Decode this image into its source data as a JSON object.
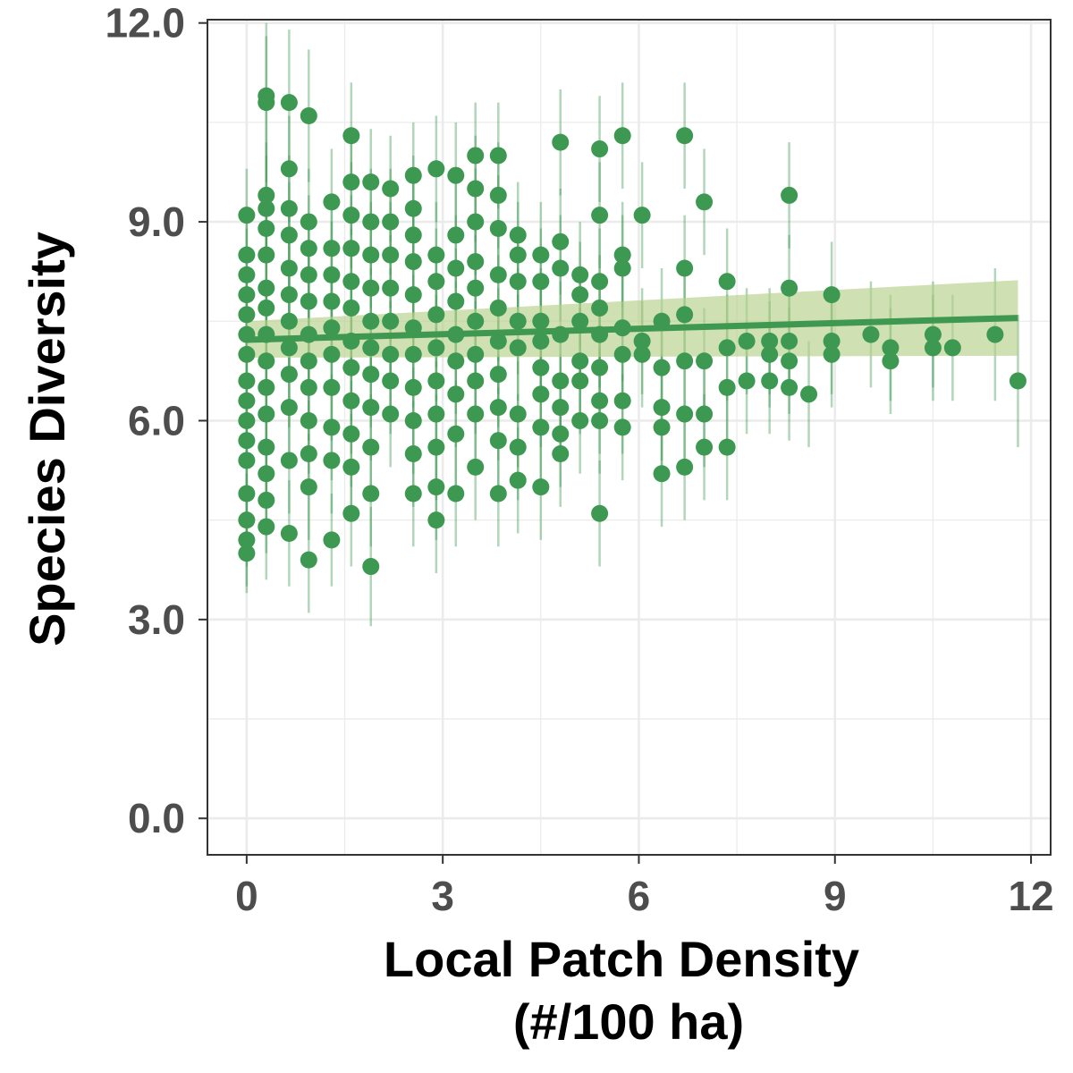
{
  "chart_data": {
    "type": "scatter",
    "xlabel_lines": [
      "Local Patch Density",
      "(#/100 ha)"
    ],
    "ylabel": "Species Diversity",
    "xlim": [
      -0.6,
      12.3
    ],
    "ylim": [
      -0.55,
      12.05
    ],
    "x_ticks": [
      0,
      3,
      6,
      9,
      12
    ],
    "x_tick_labels": [
      "0",
      "3",
      "6",
      "9",
      "12"
    ],
    "y_ticks": [
      0,
      3,
      6,
      9,
      12
    ],
    "y_tick_labels": [
      "0.0",
      "3.0",
      "6.0",
      "9.0",
      "12.0"
    ],
    "grid": true,
    "colors": {
      "points": "#3d9951",
      "error_bars": "#3d9951",
      "trend_line": "#3f9850",
      "confidence_band": "#b5d08b",
      "grid": "#ebebeb",
      "panel_border": "#333333"
    },
    "trend": {
      "x": [
        0,
        11.8
      ],
      "y": [
        7.22,
        7.55
      ],
      "ci_lower": [
        6.95,
        6.98
      ],
      "ci_upper": [
        7.5,
        8.12
      ]
    },
    "points": [
      [
        0,
        4.0,
        3.4,
        4.7
      ],
      [
        0,
        4.2,
        3.5,
        4.9
      ],
      [
        0,
        4.5,
        3.8,
        5.2
      ],
      [
        0,
        4.9,
        4.2,
        5.6
      ],
      [
        0,
        5.4,
        4.7,
        6.1
      ],
      [
        0,
        5.7,
        5.0,
        6.4
      ],
      [
        0,
        6.0,
        5.3,
        6.7
      ],
      [
        0,
        6.3,
        5.6,
        7.0
      ],
      [
        0,
        6.6,
        5.9,
        7.3
      ],
      [
        0,
        7.0,
        6.3,
        7.7
      ],
      [
        0,
        7.3,
        6.6,
        8.0
      ],
      [
        0,
        7.6,
        6.9,
        8.3
      ],
      [
        0,
        7.9,
        7.2,
        8.6
      ],
      [
        0,
        8.2,
        7.5,
        8.9
      ],
      [
        0,
        8.5,
        7.8,
        9.2
      ],
      [
        0,
        9.1,
        8.4,
        9.8
      ],
      [
        0.3,
        4.4,
        3.6,
        5.2
      ],
      [
        0.3,
        4.8,
        4.0,
        5.6
      ],
      [
        0.3,
        5.2,
        4.4,
        6.0
      ],
      [
        0.3,
        5.6,
        4.8,
        6.4
      ],
      [
        0.3,
        6.1,
        5.3,
        6.9
      ],
      [
        0.3,
        6.5,
        5.7,
        7.3
      ],
      [
        0.3,
        6.9,
        6.1,
        7.7
      ],
      [
        0.3,
        7.3,
        6.5,
        8.1
      ],
      [
        0.3,
        7.7,
        6.9,
        8.5
      ],
      [
        0.3,
        8.0,
        7.2,
        8.8
      ],
      [
        0.3,
        8.5,
        7.7,
        9.3
      ],
      [
        0.3,
        8.9,
        8.1,
        9.7
      ],
      [
        0.3,
        9.2,
        8.4,
        10.0
      ],
      [
        0.3,
        9.4,
        8.6,
        10.2
      ],
      [
        0.3,
        10.8,
        9.6,
        12.0
      ],
      [
        0.3,
        10.9,
        9.7,
        11.8
      ],
      [
        0.65,
        4.3,
        3.5,
        5.1
      ],
      [
        0.65,
        5.4,
        4.6,
        6.2
      ],
      [
        0.65,
        6.2,
        5.4,
        7.0
      ],
      [
        0.65,
        6.7,
        5.9,
        7.5
      ],
      [
        0.65,
        7.1,
        6.3,
        7.9
      ],
      [
        0.65,
        7.5,
        6.7,
        8.3
      ],
      [
        0.65,
        7.9,
        7.1,
        8.7
      ],
      [
        0.65,
        8.3,
        7.5,
        9.1
      ],
      [
        0.65,
        8.8,
        8.0,
        9.6
      ],
      [
        0.65,
        9.2,
        8.4,
        10.0
      ],
      [
        0.65,
        9.8,
        9.0,
        10.6
      ],
      [
        0.65,
        10.8,
        9.7,
        11.9
      ],
      [
        0.95,
        3.9,
        3.1,
        4.7
      ],
      [
        0.95,
        5.0,
        4.2,
        5.8
      ],
      [
        0.95,
        5.5,
        4.7,
        6.3
      ],
      [
        0.95,
        6.0,
        5.2,
        6.8
      ],
      [
        0.95,
        6.5,
        5.7,
        7.3
      ],
      [
        0.95,
        6.9,
        6.1,
        7.7
      ],
      [
        0.95,
        7.3,
        6.5,
        8.1
      ],
      [
        0.95,
        7.8,
        7.0,
        8.6
      ],
      [
        0.95,
        8.2,
        7.4,
        9.0
      ],
      [
        0.95,
        8.6,
        7.8,
        9.4
      ],
      [
        0.95,
        9.0,
        8.2,
        9.8
      ],
      [
        0.95,
        10.6,
        9.6,
        11.6
      ],
      [
        1.3,
        4.2,
        3.5,
        4.9
      ],
      [
        1.3,
        5.4,
        4.6,
        6.2
      ],
      [
        1.3,
        5.9,
        5.1,
        6.7
      ],
      [
        1.3,
        6.5,
        5.7,
        7.3
      ],
      [
        1.3,
        7.0,
        6.2,
        7.8
      ],
      [
        1.3,
        7.4,
        6.6,
        8.2
      ],
      [
        1.3,
        7.8,
        7.0,
        8.6
      ],
      [
        1.3,
        8.2,
        7.4,
        9.0
      ],
      [
        1.3,
        8.6,
        7.8,
        9.4
      ],
      [
        1.3,
        9.3,
        8.5,
        10.1
      ],
      [
        1.6,
        4.6,
        3.8,
        5.4
      ],
      [
        1.6,
        5.3,
        4.5,
        6.1
      ],
      [
        1.6,
        5.8,
        5.0,
        6.6
      ],
      [
        1.6,
        6.3,
        5.5,
        7.1
      ],
      [
        1.6,
        6.8,
        6.0,
        7.6
      ],
      [
        1.6,
        7.2,
        6.4,
        8.0
      ],
      [
        1.6,
        7.7,
        6.9,
        8.5
      ],
      [
        1.6,
        8.1,
        7.3,
        8.9
      ],
      [
        1.6,
        8.6,
        7.8,
        9.4
      ],
      [
        1.6,
        9.1,
        8.3,
        9.9
      ],
      [
        1.6,
        9.6,
        8.8,
        10.4
      ],
      [
        1.6,
        10.3,
        9.5,
        11.1
      ],
      [
        1.9,
        3.8,
        2.9,
        4.7
      ],
      [
        1.9,
        4.9,
        4.1,
        5.7
      ],
      [
        1.9,
        5.6,
        4.8,
        6.4
      ],
      [
        1.9,
        6.2,
        5.4,
        7.0
      ],
      [
        1.9,
        6.7,
        5.9,
        7.5
      ],
      [
        1.9,
        7.1,
        6.3,
        7.9
      ],
      [
        1.9,
        7.5,
        6.7,
        8.3
      ],
      [
        1.9,
        8.0,
        7.2,
        8.8
      ],
      [
        1.9,
        8.5,
        7.7,
        9.3
      ],
      [
        1.9,
        9.0,
        8.2,
        9.8
      ],
      [
        1.9,
        9.6,
        8.8,
        10.4
      ],
      [
        2.2,
        6.1,
        5.3,
        6.9
      ],
      [
        2.2,
        6.6,
        5.8,
        7.4
      ],
      [
        2.2,
        7.0,
        6.2,
        7.8
      ],
      [
        2.2,
        7.5,
        6.7,
        8.3
      ],
      [
        2.2,
        8.0,
        7.2,
        8.8
      ],
      [
        2.2,
        8.5,
        7.7,
        9.3
      ],
      [
        2.2,
        9.0,
        8.2,
        9.8
      ],
      [
        2.2,
        9.5,
        8.7,
        10.3
      ],
      [
        2.55,
        4.9,
        4.1,
        5.7
      ],
      [
        2.55,
        5.5,
        4.7,
        6.3
      ],
      [
        2.55,
        6.0,
        5.2,
        6.8
      ],
      [
        2.55,
        6.5,
        5.7,
        7.3
      ],
      [
        2.55,
        7.0,
        6.2,
        7.8
      ],
      [
        2.55,
        7.4,
        6.6,
        8.2
      ],
      [
        2.55,
        7.9,
        7.1,
        8.7
      ],
      [
        2.55,
        8.4,
        7.6,
        9.2
      ],
      [
        2.55,
        8.8,
        8.0,
        9.6
      ],
      [
        2.55,
        9.2,
        8.4,
        10.0
      ],
      [
        2.55,
        9.7,
        8.9,
        10.5
      ],
      [
        2.9,
        4.5,
        3.7,
        5.3
      ],
      [
        2.9,
        5.0,
        4.2,
        5.8
      ],
      [
        2.9,
        5.6,
        4.8,
        6.4
      ],
      [
        2.9,
        6.1,
        5.3,
        6.9
      ],
      [
        2.9,
        6.6,
        5.8,
        7.4
      ],
      [
        2.9,
        7.1,
        6.3,
        7.9
      ],
      [
        2.9,
        7.6,
        6.8,
        8.4
      ],
      [
        2.9,
        8.1,
        7.3,
        8.9
      ],
      [
        2.9,
        8.5,
        7.7,
        9.3
      ],
      [
        2.9,
        9.8,
        9.0,
        10.6
      ],
      [
        3.2,
        4.9,
        4.1,
        5.7
      ],
      [
        3.2,
        5.8,
        5.0,
        6.6
      ],
      [
        3.2,
        6.4,
        5.6,
        7.2
      ],
      [
        3.2,
        6.9,
        6.1,
        7.7
      ],
      [
        3.2,
        7.3,
        6.5,
        8.1
      ],
      [
        3.2,
        7.8,
        7.0,
        8.6
      ],
      [
        3.2,
        8.3,
        7.5,
        9.1
      ],
      [
        3.2,
        8.8,
        8.0,
        9.6
      ],
      [
        3.2,
        9.7,
        8.9,
        10.5
      ],
      [
        3.5,
        5.3,
        4.5,
        6.1
      ],
      [
        3.5,
        6.1,
        5.3,
        6.9
      ],
      [
        3.5,
        6.6,
        5.8,
        7.4
      ],
      [
        3.5,
        7.0,
        6.2,
        7.8
      ],
      [
        3.5,
        7.5,
        6.7,
        8.3
      ],
      [
        3.5,
        8.0,
        7.2,
        8.8
      ],
      [
        3.5,
        8.4,
        7.6,
        9.2
      ],
      [
        3.5,
        9.0,
        8.2,
        9.8
      ],
      [
        3.5,
        9.5,
        8.7,
        10.3
      ],
      [
        3.5,
        10.0,
        9.2,
        10.8
      ],
      [
        3.85,
        4.9,
        4.1,
        5.7
      ],
      [
        3.85,
        5.7,
        4.9,
        6.5
      ],
      [
        3.85,
        6.2,
        5.4,
        7.0
      ],
      [
        3.85,
        6.7,
        5.9,
        7.5
      ],
      [
        3.85,
        7.2,
        6.4,
        8.0
      ],
      [
        3.85,
        7.7,
        6.9,
        8.5
      ],
      [
        3.85,
        8.2,
        7.4,
        9.0
      ],
      [
        3.85,
        8.9,
        8.1,
        9.7
      ],
      [
        3.85,
        9.4,
        8.6,
        10.2
      ],
      [
        3.85,
        10.0,
        9.2,
        10.8
      ],
      [
        4.15,
        5.1,
        4.3,
        5.9
      ],
      [
        4.15,
        5.6,
        4.8,
        6.4
      ],
      [
        4.15,
        6.1,
        5.3,
        6.9
      ],
      [
        4.15,
        7.1,
        6.3,
        7.9
      ],
      [
        4.15,
        7.5,
        6.7,
        8.3
      ],
      [
        4.15,
        8.1,
        7.3,
        8.9
      ],
      [
        4.15,
        8.5,
        7.7,
        9.3
      ],
      [
        4.15,
        8.8,
        8.0,
        9.6
      ],
      [
        4.5,
        5.0,
        4.2,
        5.8
      ],
      [
        4.5,
        5.9,
        5.1,
        6.7
      ],
      [
        4.5,
        6.4,
        5.6,
        7.2
      ],
      [
        4.5,
        6.8,
        6.0,
        7.6
      ],
      [
        4.5,
        7.2,
        6.4,
        8.0
      ],
      [
        4.5,
        7.5,
        6.7,
        8.3
      ],
      [
        4.5,
        8.1,
        7.3,
        8.9
      ],
      [
        4.5,
        8.5,
        7.7,
        9.3
      ],
      [
        4.8,
        5.5,
        4.7,
        6.3
      ],
      [
        4.8,
        5.8,
        5.0,
        6.6
      ],
      [
        4.8,
        6.2,
        5.4,
        7.0
      ],
      [
        4.8,
        6.6,
        5.8,
        7.4
      ],
      [
        4.8,
        7.3,
        6.5,
        8.1
      ],
      [
        4.8,
        8.3,
        7.5,
        9.1
      ],
      [
        4.8,
        8.7,
        7.9,
        9.5
      ],
      [
        4.8,
        10.2,
        9.4,
        11.0
      ],
      [
        5.1,
        6.0,
        5.2,
        6.8
      ],
      [
        5.1,
        6.6,
        5.8,
        7.4
      ],
      [
        5.1,
        6.9,
        6.1,
        7.7
      ],
      [
        5.1,
        7.5,
        6.7,
        8.3
      ],
      [
        5.1,
        7.9,
        7.1,
        8.7
      ],
      [
        5.1,
        8.2,
        7.4,
        9.0
      ],
      [
        5.4,
        4.6,
        3.8,
        5.4
      ],
      [
        5.4,
        6.0,
        5.2,
        6.8
      ],
      [
        5.4,
        6.3,
        5.5,
        7.1
      ],
      [
        5.4,
        6.8,
        6.0,
        7.6
      ],
      [
        5.4,
        7.3,
        6.5,
        8.1
      ],
      [
        5.4,
        7.7,
        6.9,
        8.5
      ],
      [
        5.4,
        8.1,
        7.3,
        8.9
      ],
      [
        5.4,
        9.1,
        8.3,
        9.9
      ],
      [
        5.4,
        10.1,
        9.3,
        10.9
      ],
      [
        5.75,
        5.9,
        5.1,
        6.7
      ],
      [
        5.75,
        6.3,
        5.5,
        7.1
      ],
      [
        5.75,
        7.0,
        6.2,
        7.8
      ],
      [
        5.75,
        7.4,
        6.6,
        8.2
      ],
      [
        5.75,
        8.3,
        7.5,
        9.1
      ],
      [
        5.75,
        8.5,
        7.7,
        9.3
      ],
      [
        5.75,
        10.3,
        9.5,
        11.1
      ],
      [
        6.05,
        7.0,
        6.2,
        7.8
      ],
      [
        6.05,
        7.2,
        6.4,
        8.0
      ],
      [
        6.05,
        9.1,
        8.3,
        9.9
      ],
      [
        6.35,
        5.2,
        4.4,
        6.0
      ],
      [
        6.35,
        5.9,
        5.1,
        6.7
      ],
      [
        6.35,
        6.2,
        5.4,
        7.0
      ],
      [
        6.35,
        6.8,
        6.0,
        7.6
      ],
      [
        6.35,
        7.5,
        6.7,
        8.3
      ],
      [
        6.7,
        5.3,
        4.5,
        6.1
      ],
      [
        6.7,
        6.1,
        5.3,
        6.9
      ],
      [
        6.7,
        6.9,
        6.1,
        7.7
      ],
      [
        6.7,
        7.6,
        6.8,
        8.4
      ],
      [
        6.7,
        8.3,
        7.5,
        9.1
      ],
      [
        6.7,
        10.3,
        9.5,
        11.1
      ],
      [
        7.0,
        5.6,
        4.8,
        6.4
      ],
      [
        7.0,
        6.1,
        5.3,
        6.9
      ],
      [
        7.0,
        6.9,
        6.1,
        7.7
      ],
      [
        7.0,
        9.3,
        8.5,
        10.1
      ],
      [
        7.35,
        5.6,
        4.8,
        6.4
      ],
      [
        7.35,
        6.5,
        5.7,
        7.3
      ],
      [
        7.35,
        7.1,
        6.3,
        7.9
      ],
      [
        7.35,
        8.1,
        7.3,
        8.9
      ],
      [
        7.65,
        6.6,
        5.8,
        7.4
      ],
      [
        7.65,
        7.2,
        6.4,
        8.0
      ],
      [
        8.0,
        6.6,
        5.8,
        7.4
      ],
      [
        8.0,
        7.0,
        6.2,
        7.8
      ],
      [
        8.0,
        7.2,
        6.4,
        8.0
      ],
      [
        8.3,
        6.5,
        5.7,
        7.3
      ],
      [
        8.3,
        6.9,
        6.1,
        7.7
      ],
      [
        8.3,
        7.2,
        6.4,
        8.0
      ],
      [
        8.3,
        8.0,
        7.2,
        8.8
      ],
      [
        8.3,
        9.4,
        8.6,
        10.2
      ],
      [
        8.6,
        6.4,
        5.6,
        7.2
      ],
      [
        8.95,
        7.0,
        6.2,
        7.8
      ],
      [
        8.95,
        7.2,
        6.4,
        8.0
      ],
      [
        8.95,
        7.9,
        7.1,
        8.7
      ],
      [
        9.55,
        7.3,
        6.5,
        8.1
      ],
      [
        9.85,
        6.9,
        6.1,
        7.7
      ],
      [
        9.85,
        7.1,
        6.3,
        7.9
      ],
      [
        10.5,
        7.1,
        6.3,
        7.9
      ],
      [
        10.5,
        7.3,
        6.5,
        8.1
      ],
      [
        10.8,
        7.1,
        6.3,
        7.9
      ],
      [
        11.45,
        7.3,
        6.3,
        8.3
      ],
      [
        11.8,
        6.6,
        5.6,
        7.6
      ]
    ]
  }
}
